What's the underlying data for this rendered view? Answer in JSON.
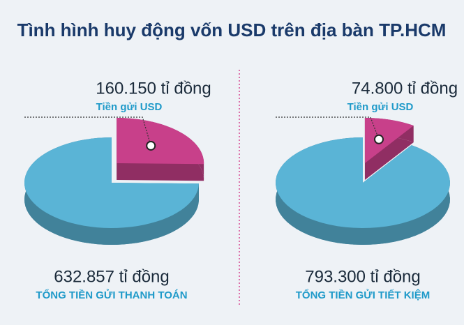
{
  "title": "Tình hình huy động vốn USD trên địa bàn TP.HCM",
  "chart_data": [
    {
      "type": "pie",
      "categories": [
        "Tiền gửi USD",
        "TỔNG TIỀN GỬI THANH TOÁN"
      ],
      "values": [
        160150,
        632857
      ],
      "value_labels": [
        "160.150 tỉ đồng",
        "632.857 tỉ đồng"
      ],
      "colors": [
        "#c8408a",
        "#5ab4d6"
      ]
    },
    {
      "type": "pie",
      "categories": [
        "Tiền gửi USD",
        "TỔNG TIỀN GỬI TIẾT KIỆM"
      ],
      "values": [
        74800,
        793300
      ],
      "value_labels": [
        "74.800 tỉ đồng",
        "793.300 tỉ đồng"
      ],
      "colors": [
        "#c8408a",
        "#5ab4d6"
      ]
    }
  ]
}
